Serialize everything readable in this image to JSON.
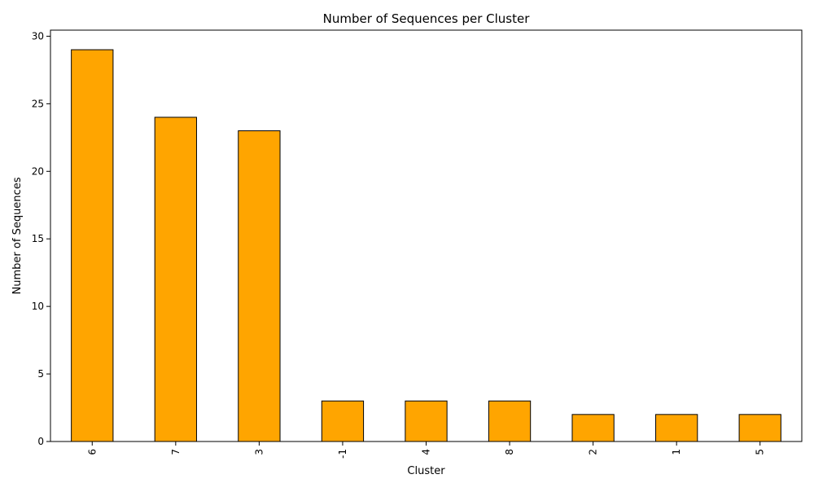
{
  "chart_data": {
    "type": "bar",
    "title": "Number of Sequences per Cluster",
    "xlabel": "Cluster",
    "ylabel": "Number of Sequences",
    "categories": [
      "6",
      "7",
      "3",
      "-1",
      "4",
      "8",
      "2",
      "1",
      "5"
    ],
    "values": [
      29,
      24,
      23,
      3,
      3,
      3,
      2,
      2,
      2
    ],
    "ylim": [
      0,
      30.45
    ],
    "yticks": [
      0,
      5,
      10,
      15,
      20,
      25,
      30
    ],
    "grid": false,
    "legend": "none",
    "x_tick_rotation": "vertical",
    "colors": {
      "bar_fill": "#FFA500",
      "bar_edge": "#000000"
    }
  }
}
